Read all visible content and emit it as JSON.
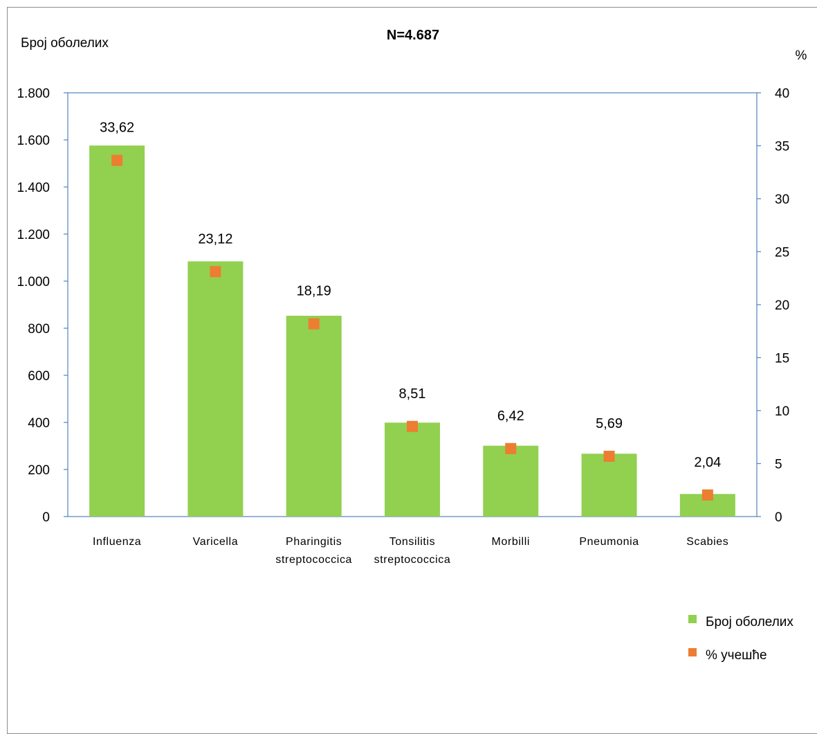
{
  "chart_data": {
    "type": "bar",
    "title": "N=4.687",
    "y_left_label": "Број оболелих",
    "y_right_label": "%",
    "categories": [
      [
        "Influenza"
      ],
      [
        "Varicella"
      ],
      [
        "Pharingitis",
        "streptococcica"
      ],
      [
        "Tonsilitis",
        "streptococcica"
      ],
      [
        "Morbilli"
      ],
      [
        "Pneumonia"
      ],
      [
        "Scabies"
      ]
    ],
    "series": [
      {
        "name": "Број оболелих",
        "type": "bar",
        "axis": "left",
        "color": "#92d050",
        "values": [
          1576,
          1084,
          853,
          399,
          301,
          267,
          96
        ]
      },
      {
        "name": "% учешће",
        "type": "marker",
        "axis": "right",
        "color": "#ed7d31",
        "values": [
          33.62,
          23.12,
          18.19,
          8.51,
          6.42,
          5.69,
          2.04
        ],
        "data_labels": [
          "33,62",
          "23,12",
          "18,19",
          "8,51",
          "6,42",
          "5,69",
          "2,04"
        ]
      }
    ],
    "ylim_left": [
      0,
      1800
    ],
    "yticks_left": [
      0,
      200,
      400,
      600,
      800,
      1000,
      1200,
      1400,
      1600,
      1800
    ],
    "ytick_labels_left": [
      "0",
      "200",
      "400",
      "600",
      "800",
      "1.000",
      "1.200",
      "1.400",
      "1.600",
      "1.800"
    ],
    "ylim_right": [
      0,
      40
    ],
    "yticks_right": [
      0,
      5,
      10,
      15,
      20,
      25,
      30,
      35,
      40
    ],
    "ytick_labels_right": [
      "0",
      "5",
      "10",
      "15",
      "20",
      "25",
      "30",
      "35",
      "40"
    ],
    "grid": false,
    "legend_position": "right"
  }
}
